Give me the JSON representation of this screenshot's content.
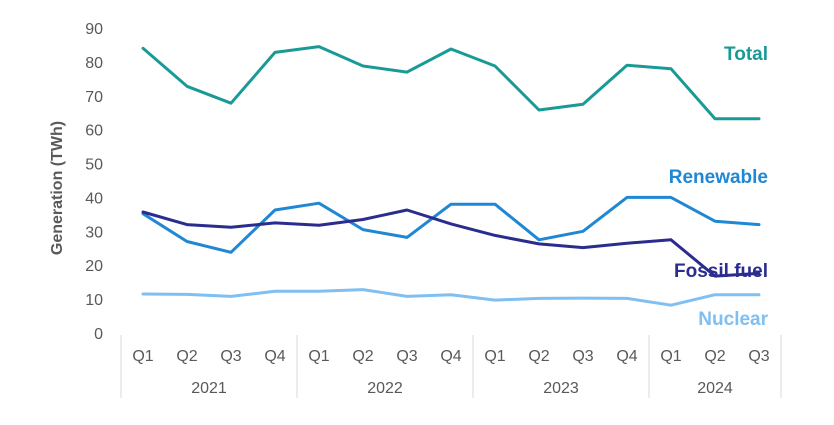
{
  "chart_data": {
    "type": "line",
    "title": "",
    "xlabel": "",
    "ylabel": "Generation (TWh)",
    "ylim": [
      0,
      90
    ],
    "yticks": [
      0,
      10,
      20,
      30,
      40,
      50,
      60,
      70,
      80,
      90
    ],
    "categories": [
      "Q1",
      "Q2",
      "Q3",
      "Q4",
      "Q1",
      "Q2",
      "Q3",
      "Q4",
      "Q1",
      "Q2",
      "Q3",
      "Q4",
      "Q1",
      "Q2",
      "Q3"
    ],
    "years": [
      {
        "label": "2021",
        "count": 4
      },
      {
        "label": "2022",
        "count": 4
      },
      {
        "label": "2023",
        "count": 4
      },
      {
        "label": "2024",
        "count": 3
      }
    ],
    "series": [
      {
        "name": "Total",
        "color": "#1a9a96",
        "values": [
          84,
          72.8,
          67.8,
          82.8,
          84.5,
          78.8,
          77,
          83.8,
          78.8,
          65.8,
          67.5,
          79,
          78,
          63.2,
          63.2
        ]
      },
      {
        "name": "Renewable",
        "color": "#1f87d4",
        "values": [
          35.2,
          27,
          23.8,
          36.3,
          38.3,
          30.5,
          28.2,
          38,
          38,
          27.5,
          30,
          40,
          40,
          33,
          32
        ]
      },
      {
        "name": "Fossil fuel",
        "color": "#2b2d8e",
        "values": [
          35.7,
          32,
          31.2,
          32.5,
          31.8,
          33.5,
          36.3,
          32.2,
          28.8,
          26.3,
          25.2,
          26.5,
          27.5,
          16.8,
          17.6
        ]
      },
      {
        "name": "Nuclear",
        "color": "#7fbff1",
        "values": [
          11.5,
          11.4,
          10.8,
          12.3,
          12.3,
          12.8,
          10.8,
          11.3,
          9.7,
          10.2,
          10.3,
          10.2,
          8.2,
          11.3,
          11.3
        ]
      }
    ]
  }
}
